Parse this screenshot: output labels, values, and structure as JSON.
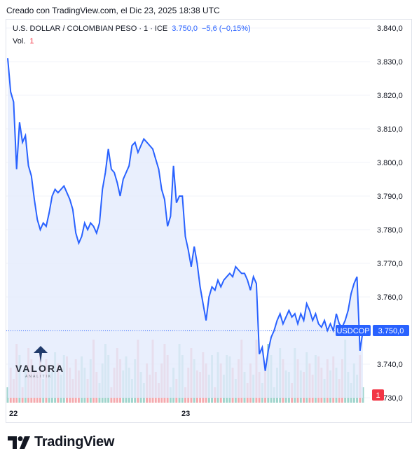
{
  "header": {
    "caption": "Creado con TradingView.com, el Dic 23, 2025 18:38 UTC"
  },
  "legend": {
    "symbol_line": "U.S. DOLLAR / COLOMBIAN PESO · 1 · ICE",
    "price": "3.750,0",
    "change": "−5,6 (−0,15%)",
    "vol_label": "Vol.",
    "vol_value": "1"
  },
  "badges": {
    "symbol": "USDCOP",
    "last_price": "3.750,0",
    "volume": "1"
  },
  "watermark": {
    "name": "VALORA",
    "sub": "ANALITIK"
  },
  "footer": {
    "brand": "TradingView"
  },
  "colors": {
    "line": "#2962ff",
    "area": "#e3ebfd",
    "vol_up": "#9fd4cc",
    "vol_down": "#f4a9ae",
    "badge": "#2962ff",
    "vol_badge": "#f23645"
  },
  "chart_data": {
    "type": "area",
    "series": [
      {
        "name": "USDCOP",
        "x": [
          0,
          1,
          2,
          3,
          4,
          5,
          6,
          7,
          8,
          9,
          10,
          11,
          12,
          13,
          14,
          15,
          16,
          17,
          18,
          19,
          20,
          21,
          22,
          23,
          24,
          25,
          26,
          27,
          28,
          29,
          30,
          31,
          32,
          33,
          34,
          35,
          36,
          37,
          38,
          39,
          40,
          41,
          42,
          43,
          44,
          45,
          46,
          47,
          48,
          49,
          50,
          51,
          52,
          53,
          54,
          55,
          56,
          57,
          58,
          59,
          60,
          61,
          62,
          63,
          64,
          65,
          66,
          67,
          68,
          69,
          70,
          71,
          72,
          73,
          74,
          75,
          76,
          77,
          78,
          79,
          80,
          81,
          82,
          83,
          84,
          85,
          86,
          87,
          88,
          89,
          90,
          91,
          92,
          93,
          94,
          95,
          96,
          97,
          98,
          99,
          100,
          101,
          102,
          103,
          104,
          105,
          106,
          107,
          108,
          109,
          110,
          111,
          112,
          113,
          114,
          115,
          116,
          117,
          118,
          119,
          120
        ],
        "values": [
          3831,
          3821,
          3818,
          3798,
          3812,
          3806,
          3808,
          3799,
          3796,
          3789,
          3783,
          3780,
          3782,
          3781,
          3785,
          3790,
          3792,
          3791,
          3792,
          3793,
          3791,
          3789,
          3786,
          3779,
          3776,
          3778,
          3782,
          3780,
          3782,
          3781,
          3779,
          3782,
          3792,
          3797,
          3804,
          3798,
          3797,
          3794,
          3790,
          3795,
          3797,
          3799,
          3805,
          3806,
          3803,
          3805,
          3807,
          3806,
          3805,
          3804,
          3801,
          3798,
          3792,
          3789,
          3781,
          3784,
          3799,
          3788,
          3790,
          3790,
          3778,
          3774,
          3769,
          3775,
          3770,
          3763,
          3758,
          3753,
          3760,
          3763,
          3762,
          3765,
          3763,
          3765,
          3766,
          3767,
          3766,
          3769,
          3768,
          3767,
          3767,
          3765,
          3762,
          3766,
          3764,
          3743,
          3745,
          3738,
          3744,
          3748,
          3750,
          3753,
          3755,
          3752,
          3754,
          3756,
          3754,
          3755,
          3752,
          3755,
          3753,
          3758,
          3756,
          3753,
          3755,
          3752,
          3751,
          3753,
          3750,
          3752,
          3750,
          3755,
          3752,
          3751,
          3753,
          3756,
          3761,
          3764,
          3766,
          3744,
          3750
        ]
      }
    ],
    "volume": [
      1,
      2,
      1,
      3,
      2,
      1,
      2,
      3,
      2,
      1,
      2,
      3,
      1,
      2,
      1,
      2,
      3,
      2,
      1,
      2,
      3,
      2,
      1,
      2,
      1,
      3,
      2,
      1,
      2,
      3,
      2,
      1,
      2,
      3,
      2,
      1,
      2,
      3,
      2,
      1,
      3,
      2,
      1,
      2,
      3,
      2,
      1,
      2,
      1,
      3,
      2,
      1,
      2,
      3,
      2,
      1,
      2,
      1,
      3,
      2,
      1,
      2,
      3,
      2,
      1,
      2,
      3,
      2,
      1,
      2,
      1,
      3,
      2,
      1,
      2,
      3,
      2,
      1,
      2,
      3,
      2,
      1,
      2,
      1,
      3,
      2,
      1,
      2,
      3,
      2,
      1,
      2,
      3,
      2,
      1,
      2,
      1,
      3,
      2,
      1,
      2,
      3,
      2,
      1,
      2,
      3,
      2,
      1,
      2,
      1,
      3,
      2,
      1,
      2,
      3,
      2,
      1,
      2,
      1,
      2,
      1
    ],
    "y_ticks": [
      "3.840,0",
      "3.830,0",
      "3.820,0",
      "3.810,0",
      "3.800,0",
      "3.790,0",
      "3.780,0",
      "3.770,0",
      "3.760,0",
      "3.750,0",
      "3.740,0",
      "3.730,0"
    ],
    "x_ticks": [
      "22",
      "23"
    ],
    "ylim": [
      3730,
      3840
    ],
    "last_value": 3750,
    "grid": true
  }
}
